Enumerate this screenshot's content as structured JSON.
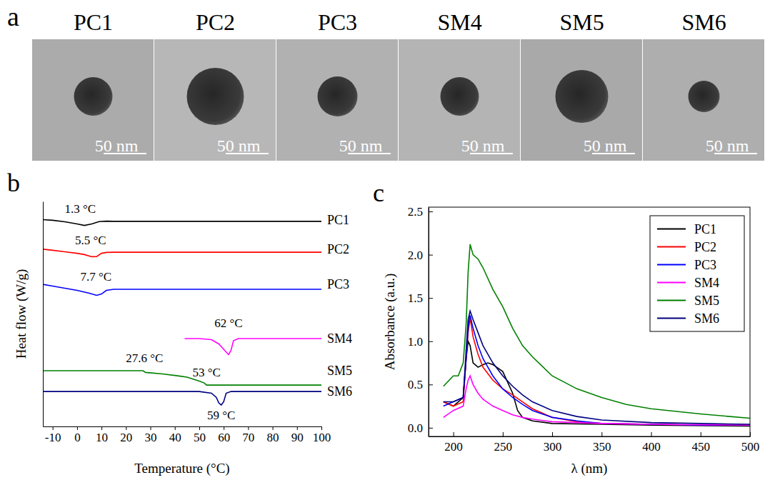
{
  "images": {
    "panel_label": "a",
    "items": [
      {
        "label": "PC1",
        "scale_bar": "50 nm"
      },
      {
        "label": "PC2",
        "scale_bar": "50 nm"
      },
      {
        "label": "PC3",
        "scale_bar": "50 nm"
      },
      {
        "label": "SM4",
        "scale_bar": "50 nm"
      },
      {
        "label": "SM5",
        "scale_bar": "50 nm"
      },
      {
        "label": "SM6",
        "scale_bar": "50 nm"
      }
    ]
  },
  "chart_data": [
    {
      "type": "line",
      "panel_label": "b",
      "x_label": "Temperature (°C)",
      "y_label": "Heat flow (W/g)",
      "xlim": [
        -14,
        100
      ],
      "xticks": [
        -10,
        0,
        10,
        20,
        30,
        40,
        50,
        60,
        70,
        80,
        90,
        100
      ],
      "ylim": [
        0,
        10.5
      ],
      "tick_labels": "x",
      "series": [
        {
          "name": "PC1",
          "color": "#000000",
          "x": [
            -14,
            -10,
            -5,
            0,
            3,
            6,
            9,
            12,
            15,
            20,
            40,
            60,
            80,
            100
          ],
          "values": [
            9.65,
            9.62,
            9.55,
            9.45,
            9.38,
            9.45,
            9.56,
            9.58,
            9.57,
            9.57,
            9.57,
            9.57,
            9.57,
            9.57
          ]
        },
        {
          "name": "PC2",
          "color": "#ff0000",
          "x": [
            -14,
            -10,
            -5,
            0,
            3,
            6,
            8,
            10,
            12,
            15,
            20,
            40,
            60,
            80,
            100
          ],
          "values": [
            8.27,
            8.22,
            8.15,
            8.08,
            8.02,
            7.92,
            7.93,
            8.08,
            8.12,
            8.13,
            8.13,
            8.13,
            8.13,
            8.13,
            8.13
          ]
        },
        {
          "name": "PC3",
          "color": "#0000ff",
          "x": [
            -14,
            -10,
            -5,
            0,
            5,
            8,
            10,
            12,
            15,
            20,
            40,
            60,
            80,
            100
          ],
          "values": [
            6.63,
            6.55,
            6.45,
            6.35,
            6.22,
            6.12,
            6.18,
            6.35,
            6.4,
            6.4,
            6.4,
            6.4,
            6.4,
            6.4
          ]
        },
        {
          "name": "SM4",
          "color": "#ff00ff",
          "x": [
            44,
            50,
            55,
            58,
            60,
            62,
            63,
            64,
            66,
            70,
            80,
            90,
            100
          ],
          "values": [
            4.1,
            4.1,
            4.05,
            3.85,
            3.6,
            3.35,
            3.55,
            4.0,
            4.1,
            4.1,
            4.1,
            4.1,
            4.1
          ]
        },
        {
          "name": "SM5",
          "color": "#008000",
          "x": [
            -14,
            0,
            20,
            27,
            28,
            35,
            40,
            45,
            50,
            52,
            53,
            60,
            80,
            100
          ],
          "values": [
            2.6,
            2.6,
            2.6,
            2.6,
            2.52,
            2.45,
            2.38,
            2.3,
            2.12,
            2.03,
            1.93,
            1.93,
            1.93,
            1.93
          ]
        },
        {
          "name": "SM6",
          "color": "#000080",
          "x": [
            -14,
            20,
            40,
            50,
            55,
            57,
            58,
            59,
            60,
            61,
            63,
            70,
            80,
            100
          ],
          "values": [
            1.63,
            1.63,
            1.63,
            1.63,
            1.55,
            1.35,
            1.1,
            1.0,
            1.15,
            1.55,
            1.63,
            1.63,
            1.63,
            1.63
          ]
        }
      ],
      "annotations": [
        {
          "text": "1.3 °C",
          "x": 1.3,
          "y": 9.97
        },
        {
          "text": "5.5 °C",
          "x": 5.5,
          "y": 8.5
        },
        {
          "text": "7.7 °C",
          "x": 7.7,
          "y": 6.8
        },
        {
          "text": "62 °C",
          "x": 62,
          "y": 4.63
        },
        {
          "text": "27.6 °C",
          "x": 27.6,
          "y": 3.0
        },
        {
          "text": "53 °C",
          "x": 53,
          "y": 2.33
        },
        {
          "text": "59 °C",
          "x": 59,
          "y": 0.33
        }
      ]
    },
    {
      "type": "line",
      "panel_label": "c",
      "x_label": "λ (nm)",
      "y_label": "Absorbance (a.u.)",
      "xlim": [
        175,
        500
      ],
      "xticks": [
        200,
        250,
        300,
        350,
        400,
        450,
        500
      ],
      "ylim": [
        -0.1,
        2.55
      ],
      "yticks": [
        {
          "value": 0,
          "label": "0.0"
        },
        0.5,
        {
          "value": 1,
          "label": "1.0"
        },
        1.5,
        {
          "value": 2,
          "label": "2.0"
        },
        2.5
      ],
      "legend": "top-right",
      "series": [
        {
          "name": "PC1",
          "color": "#000000",
          "x": [
            190,
            200,
            210,
            213,
            215,
            217,
            220,
            225,
            230,
            235,
            240,
            250,
            260,
            265,
            270,
            280,
            300,
            350,
            400,
            500
          ],
          "values": [
            0.3,
            0.25,
            0.35,
            0.8,
            1.0,
            0.95,
            0.75,
            0.7,
            0.73,
            0.75,
            0.73,
            0.65,
            0.4,
            0.2,
            0.12,
            0.08,
            0.05,
            0.04,
            0.03,
            0.02
          ]
        },
        {
          "name": "PC2",
          "color": "#ff0000",
          "x": [
            190,
            200,
            210,
            213,
            215,
            217,
            220,
            225,
            230,
            240,
            250,
            260,
            270,
            280,
            300,
            325,
            350,
            400,
            450,
            500
          ],
          "values": [
            0.3,
            0.25,
            0.3,
            0.8,
            1.1,
            1.27,
            1.05,
            0.85,
            0.7,
            0.55,
            0.45,
            0.38,
            0.3,
            0.22,
            0.12,
            0.07,
            0.05,
            0.04,
            0.03,
            0.03
          ]
        },
        {
          "name": "PC3",
          "color": "#0000ff",
          "x": [
            190,
            200,
            210,
            213,
            215,
            217,
            220,
            225,
            230,
            240,
            250,
            260,
            270,
            280,
            300,
            325,
            350,
            400,
            450,
            500
          ],
          "values": [
            0.25,
            0.3,
            0.35,
            0.8,
            1.15,
            1.3,
            1.15,
            0.95,
            0.8,
            0.6,
            0.45,
            0.35,
            0.27,
            0.2,
            0.12,
            0.08,
            0.05,
            0.04,
            0.03,
            0.03
          ]
        },
        {
          "name": "SM4",
          "color": "#ff00ff",
          "x": [
            190,
            200,
            210,
            213,
            215,
            217,
            220,
            225,
            230,
            240,
            250,
            260,
            270,
            280,
            300,
            350,
            400,
            500
          ],
          "values": [
            0.12,
            0.2,
            0.25,
            0.45,
            0.55,
            0.6,
            0.5,
            0.4,
            0.33,
            0.25,
            0.2,
            0.15,
            0.12,
            0.1,
            0.07,
            0.05,
            0.04,
            0.03
          ]
        },
        {
          "name": "SM5",
          "color": "#008000",
          "x": [
            190,
            200,
            205,
            210,
            213,
            215,
            217,
            220,
            225,
            230,
            240,
            250,
            260,
            270,
            280,
            300,
            325,
            350,
            375,
            400,
            450,
            500
          ],
          "values": [
            0.48,
            0.6,
            0.6,
            0.75,
            1.2,
            1.8,
            2.12,
            2.0,
            1.95,
            1.85,
            1.6,
            1.4,
            1.15,
            0.95,
            0.82,
            0.6,
            0.45,
            0.35,
            0.27,
            0.22,
            0.16,
            0.11
          ]
        },
        {
          "name": "SM6",
          "color": "#000080",
          "x": [
            190,
            200,
            210,
            213,
            215,
            217,
            220,
            225,
            230,
            240,
            250,
            260,
            270,
            280,
            300,
            325,
            350,
            400,
            450,
            500
          ],
          "values": [
            0.3,
            0.3,
            0.35,
            0.9,
            1.25,
            1.35,
            1.25,
            1.1,
            0.95,
            0.75,
            0.6,
            0.48,
            0.38,
            0.3,
            0.2,
            0.13,
            0.09,
            0.06,
            0.05,
            0.04
          ]
        }
      ]
    }
  ]
}
